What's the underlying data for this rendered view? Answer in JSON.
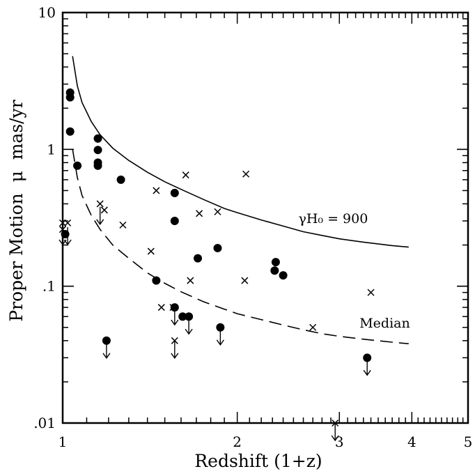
{
  "chart_data": {
    "type": "scatter",
    "xlabel": "Redshift (1+z)",
    "ylabel": "Proper Motion  μ  mas/yr",
    "xscale": "log",
    "yscale": "log",
    "xlim": [
      1,
      5
    ],
    "ylim": [
      0.01,
      10
    ],
    "x_ticks": [
      {
        "value": 1,
        "label": "1"
      },
      {
        "value": 2,
        "label": "2"
      },
      {
        "value": 3,
        "label": "3"
      },
      {
        "value": 4,
        "label": "4"
      },
      {
        "value": 5,
        "label": "5"
      }
    ],
    "y_ticks": [
      {
        "value": 0.01,
        "label": ".01"
      },
      {
        "value": 0.1,
        "label": ".1"
      },
      {
        "value": 1,
        "label": "1"
      },
      {
        "value": 10,
        "label": "10"
      }
    ],
    "grid": false,
    "legend": "none",
    "series": [
      {
        "marker": "filled-circle",
        "points": [
          {
            "x": 1.01,
            "y": 0.24
          },
          {
            "x": 1.03,
            "y": 2.6
          },
          {
            "x": 1.03,
            "y": 2.4
          },
          {
            "x": 1.03,
            "y": 1.35
          },
          {
            "x": 1.06,
            "y": 0.76
          },
          {
            "x": 1.15,
            "y": 1.2
          },
          {
            "x": 1.15,
            "y": 0.99
          },
          {
            "x": 1.15,
            "y": 0.8
          },
          {
            "x": 1.15,
            "y": 0.76
          },
          {
            "x": 1.26,
            "y": 0.6
          },
          {
            "x": 1.56,
            "y": 0.48
          },
          {
            "x": 1.56,
            "y": 0.3
          },
          {
            "x": 1.45,
            "y": 0.11
          },
          {
            "x": 1.71,
            "y": 0.16
          },
          {
            "x": 1.85,
            "y": 0.19
          },
          {
            "x": 2.33,
            "y": 0.15
          },
          {
            "x": 2.32,
            "y": 0.13
          },
          {
            "x": 2.4,
            "y": 0.12
          },
          {
            "x": 1.56,
            "y": 0.07
          },
          {
            "x": 1.61,
            "y": 0.06
          },
          {
            "x": 1.65,
            "y": 0.06
          },
          {
            "x": 1.87,
            "y": 0.05
          },
          {
            "x": 1.19,
            "y": 0.04
          },
          {
            "x": 3.35,
            "y": 0.03
          }
        ]
      },
      {
        "marker": "cross",
        "points": [
          {
            "x": 1.0,
            "y": 0.29
          },
          {
            "x": 1.02,
            "y": 0.29
          },
          {
            "x": 1.0,
            "y": 0.26
          },
          {
            "x": 1.16,
            "y": 0.4
          },
          {
            "x": 1.18,
            "y": 0.36
          },
          {
            "x": 1.27,
            "y": 0.28
          },
          {
            "x": 1.45,
            "y": 0.5
          },
          {
            "x": 1.63,
            "y": 0.65
          },
          {
            "x": 1.72,
            "y": 0.34
          },
          {
            "x": 1.85,
            "y": 0.35
          },
          {
            "x": 2.07,
            "y": 0.66
          },
          {
            "x": 1.42,
            "y": 0.18
          },
          {
            "x": 1.66,
            "y": 0.11
          },
          {
            "x": 2.06,
            "y": 0.11
          },
          {
            "x": 1.48,
            "y": 0.07
          },
          {
            "x": 1.55,
            "y": 0.07
          },
          {
            "x": 1.56,
            "y": 0.04
          },
          {
            "x": 2.7,
            "y": 0.05
          },
          {
            "x": 3.4,
            "y": 0.09
          },
          {
            "x": 2.95,
            "y": 0.01
          }
        ]
      }
    ],
    "upper_limits": [
      {
        "x": 1.0,
        "y": 0.27
      },
      {
        "x": 1.02,
        "y": 0.27
      },
      {
        "x": 1.16,
        "y": 0.38
      },
      {
        "x": 1.56,
        "y": 0.07
      },
      {
        "x": 1.56,
        "y": 0.04
      },
      {
        "x": 1.65,
        "y": 0.06
      },
      {
        "x": 1.87,
        "y": 0.05
      },
      {
        "x": 1.19,
        "y": 0.04
      },
      {
        "x": 2.95,
        "y": 0.01
      },
      {
        "x": 3.35,
        "y": 0.03
      }
    ],
    "curves": [
      {
        "style": "solid",
        "label": "γH₀ = 900",
        "label_x": 2.55,
        "label_y": 0.29,
        "points": [
          [
            1.04,
            4.8
          ],
          [
            1.06,
            2.9
          ],
          [
            1.08,
            2.2
          ],
          [
            1.12,
            1.6
          ],
          [
            1.16,
            1.28
          ],
          [
            1.22,
            1.02
          ],
          [
            1.3,
            0.83
          ],
          [
            1.4,
            0.68
          ],
          [
            1.5,
            0.58
          ],
          [
            1.6,
            0.51
          ],
          [
            1.75,
            0.43
          ],
          [
            1.9,
            0.37
          ],
          [
            2.0,
            0.345
          ],
          [
            2.2,
            0.305
          ],
          [
            2.4,
            0.275
          ],
          [
            2.6,
            0.25
          ],
          [
            2.8,
            0.235
          ],
          [
            3.0,
            0.222
          ],
          [
            3.3,
            0.21
          ],
          [
            3.7,
            0.198
          ],
          [
            3.95,
            0.193
          ]
        ]
      },
      {
        "style": "dashed",
        "label": "Median",
        "label_x": 3.25,
        "label_y": 0.05,
        "points": [
          [
            1.04,
            1.0
          ],
          [
            1.06,
            0.62
          ],
          [
            1.08,
            0.46
          ],
          [
            1.12,
            0.33
          ],
          [
            1.16,
            0.26
          ],
          [
            1.22,
            0.2
          ],
          [
            1.3,
            0.16
          ],
          [
            1.4,
            0.125
          ],
          [
            1.5,
            0.105
          ],
          [
            1.6,
            0.091
          ],
          [
            1.75,
            0.077
          ],
          [
            1.9,
            0.068
          ],
          [
            2.0,
            0.063
          ],
          [
            2.2,
            0.057
          ],
          [
            2.4,
            0.052
          ],
          [
            2.6,
            0.048
          ],
          [
            2.8,
            0.045
          ],
          [
            3.0,
            0.043
          ],
          [
            3.3,
            0.041
          ],
          [
            3.7,
            0.039
          ],
          [
            3.95,
            0.038
          ]
        ]
      }
    ]
  }
}
